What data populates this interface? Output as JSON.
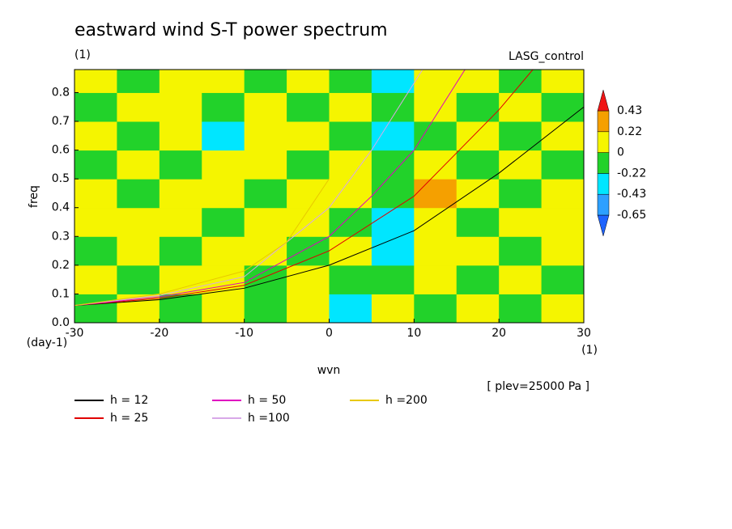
{
  "chart_data": {
    "type": "contour",
    "title": "eastward wind S-T power spectrum",
    "subtitle": "(1)",
    "run_label": "LASG_control",
    "x_label": "wvn",
    "x_unit": "(1)",
    "y_label": "freq",
    "y_unit": "(day-1)",
    "annotation": "[ plev=25000 Pa ]",
    "xlim": [
      -30,
      30
    ],
    "ylim": [
      0,
      0.88
    ],
    "xticks": [
      -30,
      -20,
      -10,
      0,
      10,
      20,
      30
    ],
    "yticks": [
      {
        "value": 0,
        "label": "0.0"
      },
      0.1,
      0.2,
      0.3,
      0.4,
      0.5,
      0.6,
      0.7,
      0.8
    ],
    "colorbar": {
      "levels": [
        -0.65,
        -0.43,
        -0.22,
        0,
        0.22,
        0.43
      ],
      "colors": [
        "#1e64ff",
        "#2da0ff",
        "#00e6ff",
        "#22d22a",
        "#f5f500",
        "#f5a000",
        "#f01414"
      ]
    },
    "field": {
      "x": [
        -27.5,
        -22.5,
        -17.5,
        -12.5,
        -7.5,
        -2.5,
        2.5,
        7.5,
        12.5,
        17.5,
        22.5,
        27.5
      ],
      "y": [
        0.05,
        0.15,
        0.25,
        0.35,
        0.45,
        0.55,
        0.65,
        0.75,
        0.85
      ],
      "z": [
        [
          -0.1,
          0.1,
          -0.1,
          0.1,
          -0.1,
          0.1,
          -0.3,
          0.1,
          -0.1,
          0.1,
          -0.1,
          0.1
        ],
        [
          0.1,
          -0.1,
          0.1,
          0.1,
          -0.1,
          0.1,
          -0.1,
          -0.1,
          0.1,
          -0.1,
          0.1,
          -0.1
        ],
        [
          -0.1,
          0.1,
          -0.1,
          0.1,
          0.1,
          -0.1,
          0.1,
          -0.3,
          0.1,
          0.1,
          -0.1,
          0.1
        ],
        [
          0.1,
          0.1,
          0.1,
          -0.1,
          0.1,
          0.1,
          -0.1,
          -0.3,
          0.1,
          -0.1,
          0.1,
          0.1
        ],
        [
          0.1,
          -0.1,
          0.1,
          0.1,
          -0.1,
          0.1,
          0.1,
          -0.1,
          0.3,
          0.1,
          -0.1,
          0.1
        ],
        [
          -0.1,
          0.1,
          -0.1,
          0.1,
          0.1,
          -0.1,
          0.1,
          -0.1,
          0.1,
          -0.1,
          0.1,
          -0.1
        ],
        [
          0.1,
          -0.1,
          0.1,
          -0.3,
          0.1,
          0.1,
          -0.1,
          -0.3,
          -0.1,
          0.1,
          -0.1,
          0.1
        ],
        [
          -0.1,
          0.1,
          0.1,
          -0.1,
          0.1,
          -0.1,
          0.1,
          -0.1,
          0.1,
          -0.1,
          0.1,
          -0.1
        ],
        [
          0.1,
          -0.1,
          0.1,
          0.1,
          -0.1,
          0.1,
          -0.1,
          -0.3,
          0.1,
          0.1,
          -0.1,
          0.1
        ]
      ]
    },
    "series": [
      {
        "name": "h = 12",
        "color": "#000000",
        "x": [
          -30,
          -20,
          -10,
          0,
          10,
          20,
          30
        ],
        "values": [
          0.06,
          0.08,
          0.12,
          0.2,
          0.32,
          0.52,
          0.75
        ]
      },
      {
        "name": "h = 25",
        "color": "#e00000",
        "x": [
          -30,
          -20,
          -10,
          0,
          10,
          20,
          24
        ],
        "values": [
          0.06,
          0.085,
          0.13,
          0.25,
          0.44,
          0.74,
          0.88
        ]
      },
      {
        "name": "h = 50",
        "color": "#e000c0",
        "x": [
          -30,
          -20,
          -10,
          0,
          5,
          10,
          16
        ],
        "values": [
          0.06,
          0.09,
          0.14,
          0.3,
          0.44,
          0.6,
          0.88
        ]
      },
      {
        "name": "h =100",
        "color": "#d8a8e8",
        "x": [
          -30,
          -20,
          -10,
          0,
          5,
          11
        ],
        "values": [
          0.06,
          0.095,
          0.16,
          0.4,
          0.6,
          0.88
        ]
      },
      {
        "name": "h =200",
        "color": "#e8c800",
        "x": [
          -30,
          -20,
          -10,
          -5,
          0
        ],
        "values": [
          0.06,
          0.1,
          0.18,
          0.28,
          0.5
        ]
      }
    ]
  }
}
